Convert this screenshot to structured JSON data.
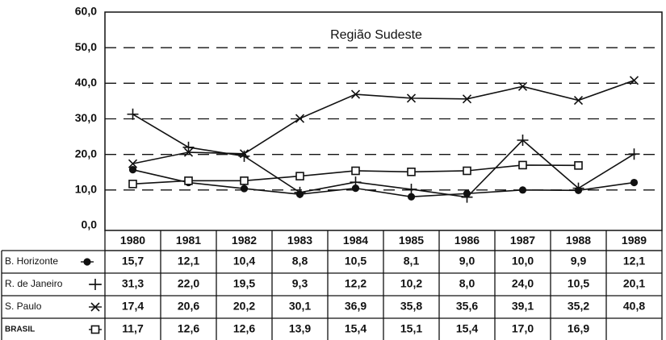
{
  "chart_data": {
    "type": "line",
    "title": "Região Sudeste",
    "categories": [
      "1980",
      "1981",
      "1982",
      "1983",
      "1984",
      "1985",
      "1986",
      "1987",
      "1988",
      "1989"
    ],
    "ylim": [
      0,
      60
    ],
    "yticks": [
      {
        "value": 0,
        "label": "0,0"
      },
      {
        "value": 10,
        "label": "10,0"
      },
      {
        "value": 20,
        "label": "20,0"
      },
      {
        "value": 30,
        "label": "30,0"
      },
      {
        "value": 40,
        "label": "40,0"
      },
      {
        "value": 50,
        "label": "50,0"
      },
      {
        "value": 60,
        "label": "60,0"
      }
    ],
    "grid": true,
    "series": [
      {
        "name": "B. Horizonte",
        "marker": "circle",
        "color": "#111",
        "values": [
          15.7,
          12.1,
          10.4,
          8.8,
          10.5,
          8.1,
          9.0,
          10.0,
          9.9,
          12.1
        ],
        "value_labels": [
          "15,7",
          "12,1",
          "10,4",
          "8,8",
          "10,5",
          "8,1",
          "9,0",
          "10,0",
          "9,9",
          "12,1"
        ]
      },
      {
        "name": "R. de Janeiro",
        "marker": "plus",
        "color": "#111",
        "values": [
          31.3,
          22.0,
          19.5,
          9.3,
          12.2,
          10.2,
          8.0,
          24.0,
          10.5,
          20.1
        ],
        "value_labels": [
          "31,3",
          "22,0",
          "19,5",
          "9,3",
          "12,2",
          "10,2",
          "8,0",
          "24,0",
          "10,5",
          "20,1"
        ]
      },
      {
        "name": "S. Paulo",
        "marker": "x",
        "color": "#111",
        "values": [
          17.4,
          20.6,
          20.2,
          30.1,
          36.9,
          35.8,
          35.6,
          39.1,
          35.2,
          40.8
        ],
        "value_labels": [
          "17,4",
          "20,6",
          "20,2",
          "30,1",
          "36,9",
          "35,8",
          "35,6",
          "39,1",
          "35,2",
          "40,8"
        ]
      },
      {
        "name": "BRASIL",
        "marker": "square",
        "color": "#111",
        "values": [
          11.7,
          12.6,
          12.6,
          13.9,
          15.4,
          15.1,
          15.4,
          17.0,
          16.9,
          null
        ],
        "value_labels": [
          "11,7",
          "12,6",
          "12,6",
          "13,9",
          "15,4",
          "15,1",
          "15,4",
          "17,0",
          "16,9",
          null
        ]
      }
    ]
  }
}
